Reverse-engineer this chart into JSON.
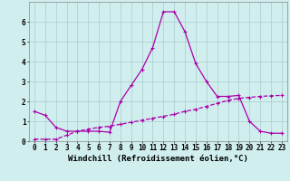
{
  "xlabel": "Windchill (Refroidissement éolien,°C)",
  "x": [
    0,
    1,
    2,
    3,
    4,
    5,
    6,
    7,
    8,
    9,
    10,
    11,
    12,
    13,
    14,
    15,
    16,
    17,
    18,
    19,
    20,
    21,
    22,
    23
  ],
  "curve1": [
    1.5,
    1.3,
    0.7,
    0.5,
    0.5,
    0.5,
    0.5,
    0.45,
    2.0,
    2.8,
    3.6,
    4.7,
    6.5,
    6.5,
    5.5,
    3.9,
    3.0,
    2.25,
    2.25,
    2.3,
    1.0,
    0.5,
    0.4,
    0.4
  ],
  "curve2": [
    0.1,
    0.1,
    0.1,
    0.3,
    0.5,
    0.6,
    0.7,
    0.75,
    0.85,
    0.95,
    1.05,
    1.15,
    1.25,
    1.35,
    1.5,
    1.6,
    1.75,
    1.9,
    2.05,
    2.15,
    2.2,
    2.25,
    2.28,
    2.3
  ],
  "color": "#aa00aa",
  "bg_color": "#d0eeee",
  "grid_color": "#aacccc",
  "ylim": [
    0,
    7
  ],
  "xlim": [
    -0.5,
    23.5
  ],
  "yticks": [
    0,
    1,
    2,
    3,
    4,
    5,
    6
  ],
  "xticks": [
    0,
    1,
    2,
    3,
    4,
    5,
    6,
    7,
    8,
    9,
    10,
    11,
    12,
    13,
    14,
    15,
    16,
    17,
    18,
    19,
    20,
    21,
    22,
    23
  ],
  "tick_fontsize": 5.5,
  "label_fontsize": 6.5,
  "markersize": 3,
  "linewidth": 0.9
}
